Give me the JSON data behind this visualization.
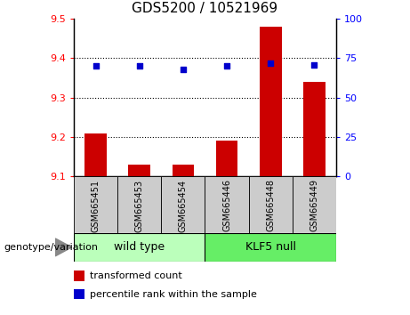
{
  "title": "GDS5200 / 10521969",
  "samples": [
    "GSM665451",
    "GSM665453",
    "GSM665454",
    "GSM665446",
    "GSM665448",
    "GSM665449"
  ],
  "transformed_counts": [
    9.21,
    9.13,
    9.13,
    9.19,
    9.48,
    9.34
  ],
  "percentile_ranks": [
    70,
    70,
    68,
    70,
    72,
    71
  ],
  "ylim_left": [
    9.1,
    9.5
  ],
  "ylim_right": [
    0,
    100
  ],
  "yticks_left": [
    9.1,
    9.2,
    9.3,
    9.4,
    9.5
  ],
  "yticks_right": [
    0,
    25,
    50,
    75,
    100
  ],
  "bar_color": "#cc0000",
  "dot_color": "#0000cc",
  "bar_bottom": 9.1,
  "grid_lines": [
    9.2,
    9.3,
    9.4
  ],
  "title_fontsize": 11,
  "tick_fontsize": 8,
  "sample_fontsize": 7,
  "legend_fontsize": 8,
  "group_label_fontsize": 9,
  "group_label_left": "wild type",
  "group_label_right": "KLF5 null",
  "wt_color": "#bbffbb",
  "klf_color": "#66ee66",
  "sample_box_color": "#cccccc",
  "genotype_label": "genotype/variation"
}
